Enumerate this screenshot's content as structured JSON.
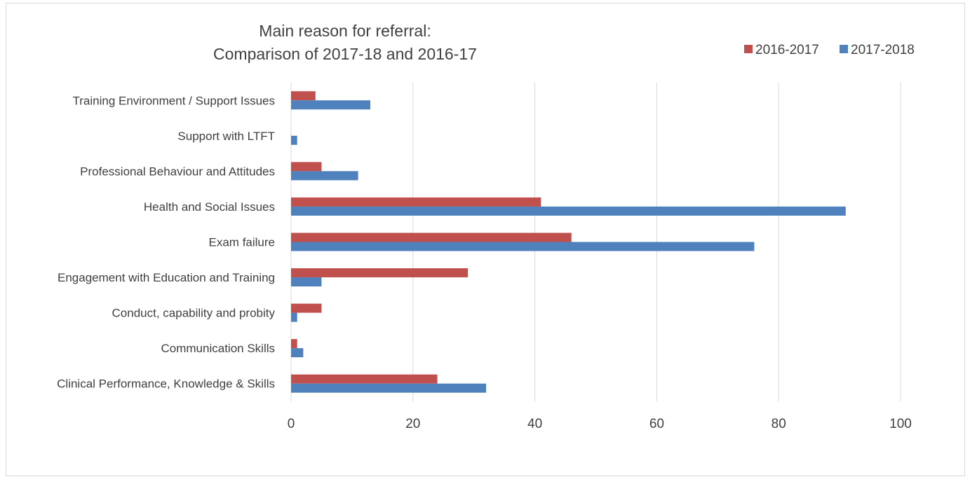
{
  "chart_data": {
    "type": "bar",
    "orientation": "horizontal",
    "title": [
      "Main reason for referral:",
      "Comparison of 2017-18 and 2016-17"
    ],
    "categories": [
      "Training Environment / Support Issues",
      "Support with LTFT",
      "Professional Behaviour and Attitudes",
      "Health and Social Issues",
      "Exam failure",
      "Engagement with Education and Training",
      "Conduct, capability and probity",
      "Communication Skills",
      "Clinical Performance, Knowledge & Skills"
    ],
    "series": [
      {
        "name": "2016-2017",
        "color": "#c0504d",
        "values": [
          4,
          0,
          5,
          41,
          46,
          29,
          5,
          1,
          24
        ]
      },
      {
        "name": "2017-2018",
        "color": "#4f81bd",
        "values": [
          13,
          1,
          11,
          91,
          76,
          5,
          1,
          2,
          32
        ]
      }
    ],
    "xlim": [
      0,
      100
    ],
    "xticks": [
      0,
      20,
      40,
      60,
      80,
      100
    ],
    "xlabel": "",
    "ylabel": "",
    "grid": "vertical",
    "legend_position": "top-right"
  }
}
